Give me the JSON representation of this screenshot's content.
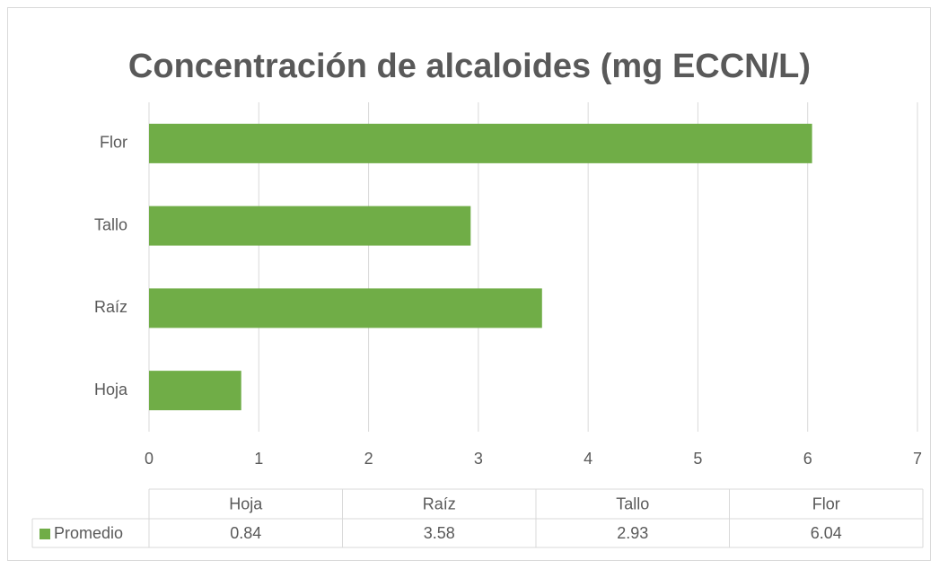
{
  "chart_data": {
    "type": "hbar",
    "title": "Concentración de alcaloides (mg ECCN/L)",
    "categories": [
      "Hoja",
      "Raíz",
      "Tallo",
      "Flor"
    ],
    "series": [
      {
        "name": "Promedio",
        "color": "#70ad47",
        "values": [
          0.84,
          3.58,
          2.93,
          6.04
        ]
      }
    ],
    "xlim": [
      0,
      7
    ],
    "xticks": [
      0,
      1,
      2,
      3,
      4,
      5,
      6,
      7
    ],
    "grid": true,
    "data_table": true
  }
}
